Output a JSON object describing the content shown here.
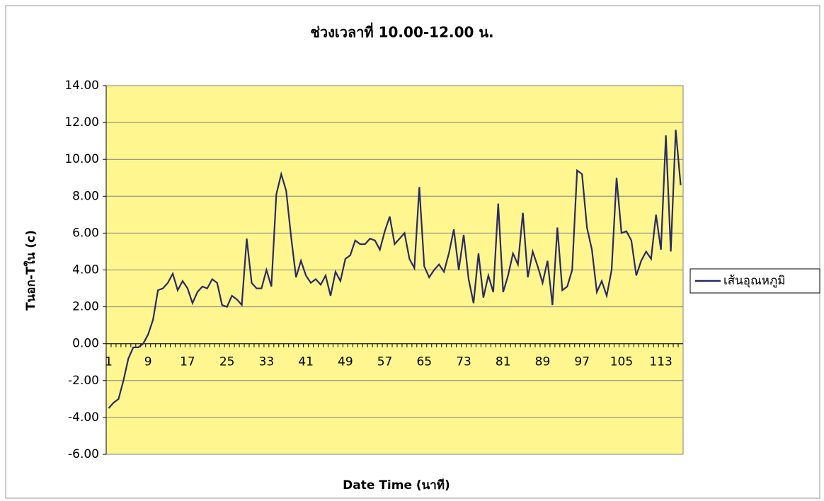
{
  "chart_data": {
    "type": "line",
    "title": "ช่วงเวลาที่ 10.00-12.00 น.",
    "x_label": "Date Time (นาที)",
    "y_label": "Tนอก-Tใน (c)",
    "categories": [
      "1",
      null,
      null,
      null,
      null,
      null,
      null,
      null,
      "9",
      null,
      null,
      null,
      null,
      null,
      null,
      null,
      "17",
      null,
      null,
      null,
      null,
      null,
      null,
      null,
      "25",
      null,
      null,
      null,
      null,
      null,
      null,
      null,
      "33",
      null,
      null,
      null,
      null,
      null,
      null,
      null,
      "41",
      null,
      null,
      null,
      null,
      null,
      null,
      null,
      "49",
      null,
      null,
      null,
      null,
      null,
      null,
      null,
      "57",
      null,
      null,
      null,
      null,
      null,
      null,
      null,
      "65",
      null,
      null,
      null,
      null,
      null,
      null,
      null,
      "73",
      null,
      null,
      null,
      null,
      null,
      null,
      null,
      "81",
      null,
      null,
      null,
      null,
      null,
      null,
      null,
      "89",
      null,
      null,
      null,
      null,
      null,
      null,
      null,
      "97",
      null,
      null,
      null,
      null,
      null,
      null,
      null,
      "105",
      null,
      null,
      null,
      null,
      null,
      null,
      null,
      "113",
      null,
      null,
      null,
      null
    ],
    "series": [
      {
        "name": "เส้นอุณหภูมิ",
        "color": "#2a2a66",
        "values": [
          -3.5,
          -3.2,
          -3.0,
          -2.0,
          -0.8,
          -0.2,
          -0.2,
          0.0,
          0.5,
          1.3,
          2.9,
          3.0,
          3.3,
          3.8,
          2.9,
          3.4,
          3.0,
          2.2,
          2.8,
          3.1,
          3.0,
          3.5,
          3.3,
          2.1,
          2.0,
          2.6,
          2.4,
          2.1,
          5.7,
          3.3,
          3.0,
          3.0,
          4.0,
          3.1,
          8.1,
          9.2,
          8.3,
          5.8,
          3.6,
          4.5,
          3.7,
          3.3,
          3.5,
          3.2,
          3.7,
          2.6,
          3.9,
          3.4,
          4.6,
          4.8,
          5.6,
          5.4,
          5.4,
          5.7,
          5.6,
          5.1,
          6.1,
          6.9,
          5.4,
          5.7,
          6.0,
          4.6,
          4.1,
          8.5,
          4.2,
          3.6,
          4.0,
          4.3,
          3.9,
          4.9,
          6.2,
          4.0,
          5.9,
          3.5,
          2.2,
          4.9,
          2.5,
          3.7,
          2.8,
          7.6,
          2.8,
          3.7,
          4.9,
          4.3,
          7.1,
          3.6,
          5.0,
          4.2,
          3.3,
          4.5,
          2.1,
          6.3,
          2.9,
          3.1,
          4.0,
          9.4,
          9.2,
          6.3,
          5.1,
          2.8,
          3.4,
          2.6,
          4.0,
          9.0,
          6.0,
          6.1,
          5.6,
          3.7,
          4.5,
          5.0,
          4.6,
          7.0,
          5.1,
          11.3,
          5.0,
          11.6,
          8.6
        ]
      }
    ],
    "ylim": [
      -6,
      14
    ],
    "yticks": [
      {
        "value": -6,
        "label": "-6.00"
      },
      {
        "value": -4,
        "label": "-4.00"
      },
      {
        "value": -2,
        "label": "-2.00"
      },
      {
        "value": 0,
        "label": "0.00"
      },
      {
        "value": 2,
        "label": "2.00"
      },
      {
        "value": 4,
        "label": "4.00"
      },
      {
        "value": 6,
        "label": "6.00"
      },
      {
        "value": 8,
        "label": "8.00"
      },
      {
        "value": 10,
        "label": "10.00"
      },
      {
        "value": 12,
        "label": "12.00"
      },
      {
        "value": 14,
        "label": "14.00"
      }
    ],
    "grid": true,
    "plot_background": "#fff68f",
    "legend": "right"
  }
}
